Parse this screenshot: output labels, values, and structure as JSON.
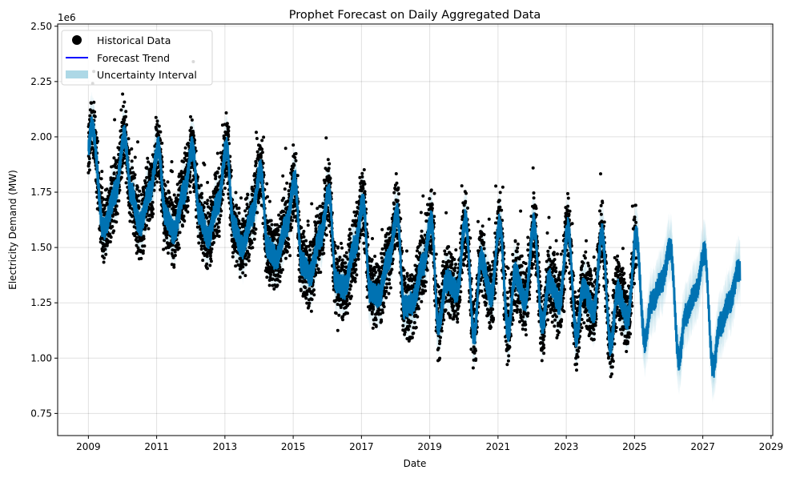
{
  "chart_data": {
    "type": "line",
    "title": "Prophet Forecast on Daily Aggregated Data",
    "xlabel": "Date",
    "ylabel": "Electricity Demand (MW)",
    "y_offset_label": "1e6",
    "xlim": [
      2008.1,
      2029.05
    ],
    "ylim": [
      650000,
      2510000
    ],
    "x_ticks": [
      2009,
      2011,
      2013,
      2015,
      2017,
      2019,
      2021,
      2023,
      2025,
      2027,
      2029
    ],
    "x_tick_labels": [
      "2009",
      "2011",
      "2013",
      "2015",
      "2017",
      "2019",
      "2021",
      "2023",
      "2025",
      "2027",
      "2029"
    ],
    "y_ticks": [
      750000,
      1000000,
      1250000,
      1500000,
      1750000,
      2000000,
      2250000,
      2500000
    ],
    "y_tick_labels": [
      "0.75",
      "1.00",
      "1.25",
      "1.50",
      "1.75",
      "2.00",
      "2.25",
      "2.50"
    ],
    "grid": true,
    "legend_position": "top-left",
    "legend": [
      {
        "label": "Historical Data",
        "symbol": "dot",
        "color": "#000000"
      },
      {
        "label": "Forecast Trend",
        "symbol": "line",
        "color": "#0000ff"
      },
      {
        "label": "Uncertainty Interval",
        "symbol": "patch",
        "color": "#add8e6"
      }
    ],
    "historical_end": 2025.05,
    "forecast_end": 2028.1,
    "series": [
      {
        "name": "Forecast Trend",
        "color": "#0072b2",
        "band_color": "#add8e6",
        "x": [
          2009.0,
          2009.1,
          2009.45,
          2009.8,
          2010.05,
          2010.25,
          2010.5,
          2010.8,
          2011.05,
          2011.25,
          2011.5,
          2011.8,
          2012.05,
          2012.25,
          2012.5,
          2012.8,
          2013.05,
          2013.25,
          2013.5,
          2013.8,
          2014.05,
          2014.25,
          2014.5,
          2014.8,
          2015.05,
          2015.25,
          2015.5,
          2015.8,
          2016.05,
          2016.25,
          2016.5,
          2016.8,
          2017.05,
          2017.25,
          2017.5,
          2017.8,
          2018.05,
          2018.25,
          2018.5,
          2018.8,
          2019.05,
          2019.25,
          2019.5,
          2019.8,
          2020.05,
          2020.3,
          2020.5,
          2020.8,
          2021.05,
          2021.3,
          2021.5,
          2021.8,
          2022.05,
          2022.3,
          2022.5,
          2022.8,
          2023.05,
          2023.3,
          2023.5,
          2023.8,
          2024.05,
          2024.3,
          2024.5,
          2024.8,
          2025.05,
          2025.3,
          2025.5,
          2025.8,
          2026.05,
          2026.3,
          2026.5,
          2026.8,
          2027.05,
          2027.3,
          2027.5,
          2027.8,
          2028.05
        ],
        "y": [
          1950000,
          2050000,
          1580000,
          1750000,
          2000000,
          1750000,
          1600000,
          1750000,
          1950000,
          1650000,
          1570000,
          1750000,
          1950000,
          1650000,
          1550000,
          1700000,
          1950000,
          1600000,
          1500000,
          1650000,
          1850000,
          1500000,
          1450000,
          1600000,
          1800000,
          1430000,
          1380000,
          1550000,
          1750000,
          1350000,
          1320000,
          1500000,
          1700000,
          1300000,
          1280000,
          1450000,
          1650000,
          1230000,
          1250000,
          1420000,
          1620000,
          1150000,
          1350000,
          1300000,
          1620000,
          1100000,
          1450000,
          1280000,
          1600000,
          1120000,
          1380000,
          1260000,
          1600000,
          1150000,
          1350000,
          1250000,
          1580000,
          1100000,
          1320000,
          1210000,
          1560000,
          1060000,
          1300000,
          1180000,
          1550000,
          1080000,
          1250000,
          1350000,
          1500000,
          1000000,
          1200000,
          1300000,
          1480000,
          960000,
          1150000,
          1260000,
          1400000
        ]
      }
    ]
  }
}
